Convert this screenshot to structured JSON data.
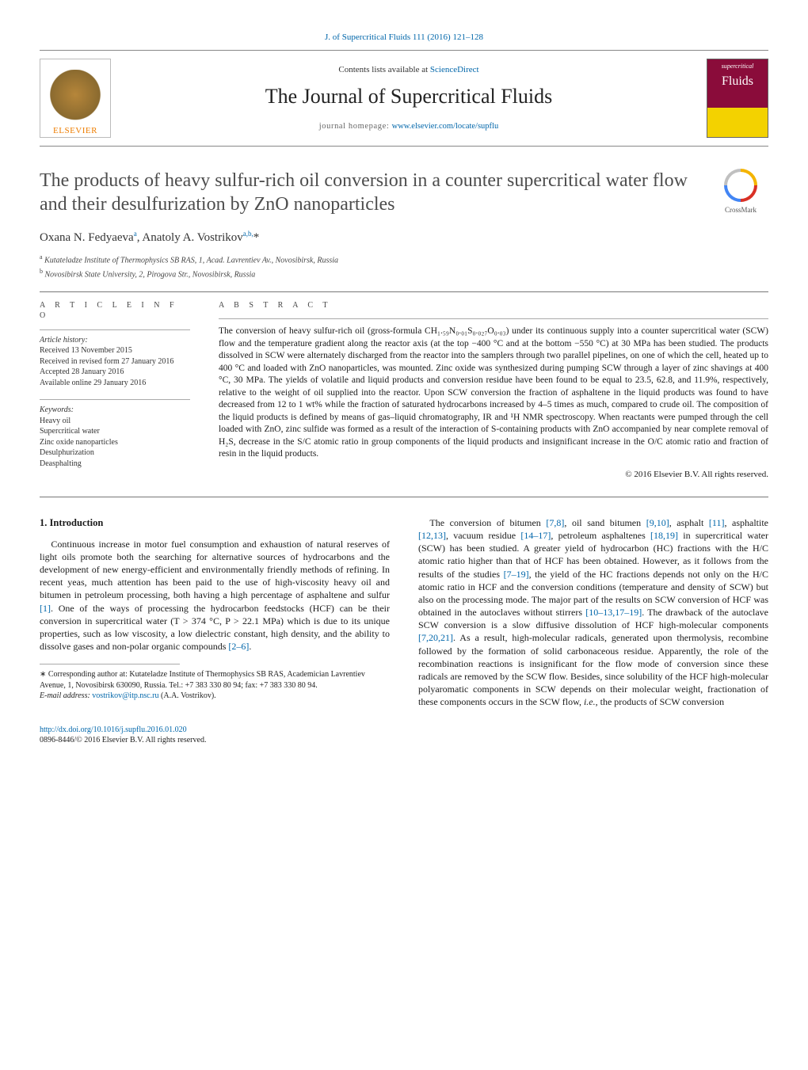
{
  "header": {
    "citation": "J. of Supercritical Fluids 111 (2016) 121–128",
    "contents_prefix": "Contents lists available at ",
    "contents_link": "ScienceDirect",
    "journal_name": "The Journal of Supercritical Fluids",
    "homepage_prefix": "journal homepage: ",
    "homepage_url": "www.elsevier.com/locate/supflu",
    "publisher_name": "ELSEVIER",
    "cover_top": "supercritical",
    "cover_big": "Fluids"
  },
  "crossmark_label": "CrossMark",
  "title": "The products of heavy sulfur-rich oil conversion in a counter supercritical water flow and their desulfurization by ZnO nanoparticles",
  "authors_html": "Oxana N. Fedyaeva<sup>a</sup>, Anatoly A. Vostrikov<sup>a,b,</sup>*",
  "affiliations": [
    {
      "sup": "a",
      "text": "Kutateladze Institute of Thermophysics SB RAS, 1, Acad. Lavrentiev Av., Novosibirsk, Russia"
    },
    {
      "sup": "b",
      "text": "Novosibirsk State University, 2, Pirogova Str., Novosibirsk, Russia"
    }
  ],
  "article_info": {
    "heading": "a r t i c l e   i n f o",
    "history_label": "Article history:",
    "history": [
      "Received 13 November 2015",
      "Received in revised form 27 January 2016",
      "Accepted 28 January 2016",
      "Available online 29 January 2016"
    ],
    "keywords_label": "Keywords:",
    "keywords": [
      "Heavy oil",
      "Supercritical water",
      "Zinc oxide nanoparticles",
      "Desulphurization",
      "Deasphalting"
    ]
  },
  "abstract": {
    "heading": "a b s t r a c t",
    "text": "The conversion of heavy sulfur-rich oil (gross-formula CH₁.₅₉N₀.₀₁S₀.₀₂₇O₀.₀₃) under its continuous supply into a counter supercritical water (SCW) flow and the temperature gradient along the reactor axis (at the top −400 °C and at the bottom −550 °C) at 30 MPa has been studied. The products dissolved in SCW were alternately discharged from the reactor into the samplers through two parallel pipelines, on one of which the cell, heated up to 400 °C and loaded with ZnO nanoparticles, was mounted. Zinc oxide was synthesized during pumping SCW through a layer of zinc shavings at 400 °C, 30 MPa. The yields of volatile and liquid products and conversion residue have been found to be equal to 23.5, 62.8, and 11.9%, respectively, relative to the weight of oil supplied into the reactor. Upon SCW conversion the fraction of asphaltene in the liquid products was found to have decreased from 12 to 1 wt% while the fraction of saturated hydrocarbons increased by 4–5 times as much, compared to crude oil. The composition of the liquid products is defined by means of gas–liquid chromatography, IR and ¹H NMR spectroscopy. When reactants were pumped through the cell loaded with ZnO, zinc sulfide was formed as a result of the interaction of S-containing products with ZnO accompanied by near complete removal of H₂S, decrease in the S/C atomic ratio in group components of the liquid products and insignificant increase in the O/C atomic ratio and fraction of resin in the liquid products.",
    "copyright": "© 2016 Elsevier B.V. All rights reserved."
  },
  "body": {
    "section_number": "1.",
    "section_title": "Introduction",
    "p1_pre": "Continuous increase in motor fuel consumption and exhaustion of natural reserves of light oils promote both the searching for alternative sources of hydrocarbons and the development of new energy-efficient and environmentally friendly methods of refining. In recent yeas, much attention has been paid to the use of high-viscosity heavy oil and bitumen in petroleum processing, both having a high percentage of asphaltene and sulfur ",
    "p1_ref1": "[1]",
    "p1_mid": ". One of the ways of processing the hydrocarbon feedstocks (HCF) can be their conversion in supercritical water (T > 374 °C, P > 22.1 MPa) which is due to its unique properties, such as low viscosity, a low dielectric constant, high density, and the ability to dissolve gases and non-polar organic compounds ",
    "p1_ref2": "[2–6]",
    "p1_post": ".",
    "p2_parts": [
      {
        "t": "The conversion of bitumen "
      },
      {
        "r": "[7,8]"
      },
      {
        "t": ", oil sand bitumen "
      },
      {
        "r": "[9,10]"
      },
      {
        "t": ", asphalt "
      },
      {
        "r": "[11]"
      },
      {
        "t": ", asphaltite "
      },
      {
        "r": "[12,13]"
      },
      {
        "t": ", vacuum residue "
      },
      {
        "r": "[14–17]"
      },
      {
        "t": ", petroleum asphaltenes "
      },
      {
        "r": "[18,19]"
      },
      {
        "t": " in supercritical water (SCW) has been studied. A greater yield of hydrocarbon (HC) fractions with the H/C atomic ratio higher than that of HCF has been obtained. However, as it follows from the results of the studies "
      },
      {
        "r": "[7–19]"
      },
      {
        "t": ", the yield of the HC fractions depends not only on the H/C atomic ratio in HCF and the conversion conditions (temperature and density of SCW) but also on the processing mode. The major part of the results on SCW conversion of HCF was obtained in the autoclaves without stirrers "
      },
      {
        "r": "[10–13,17–19]"
      },
      {
        "t": ". The drawback of the autoclave SCW conversion is a slow diffusive dissolution of HCF high-molecular components "
      },
      {
        "r": "[7,20,21]"
      },
      {
        "t": ". As a result, high-molecular radicals, generated upon thermolysis, recombine followed by the formation of solid carbonaceous residue. Apparently, the role of the recombination reactions is insignificant for the flow mode of conversion since these radicals are removed by the SCW flow. Besides, since solubility of the HCF high-molecular polyaromatic components in SCW depends on their molecular weight, fractionation of these components occurs in the SCW flow, "
      },
      {
        "i": "i.e."
      },
      {
        "t": ", the products of SCW conversion"
      }
    ]
  },
  "footnotes": {
    "corr_label": "∗ Corresponding author at: ",
    "corr_text": "Kutateladze Institute of Thermophysics SB RAS, Academician Lavrentiev Avenue, 1, Novosibirsk 630090, Russia. Tel.: +7 383 330 80 94; fax: +7 383 330 80 94.",
    "email_label": "E-mail address: ",
    "email": "vostrikov@itp.nsc.ru",
    "email_who": " (A.A. Vostrikov)."
  },
  "doi": {
    "url": "http://dx.doi.org/10.1016/j.supflu.2016.01.020",
    "rights": "0896-8446/© 2016 Elsevier B.V. All rights reserved."
  },
  "colors": {
    "link": "#0066aa",
    "rule": "#777777",
    "title_gray": "#4d4d4d",
    "cover_maroon": "#8a0c3a",
    "cover_yellow": "#f3d200",
    "elsevier_orange": "#ee7d00"
  }
}
